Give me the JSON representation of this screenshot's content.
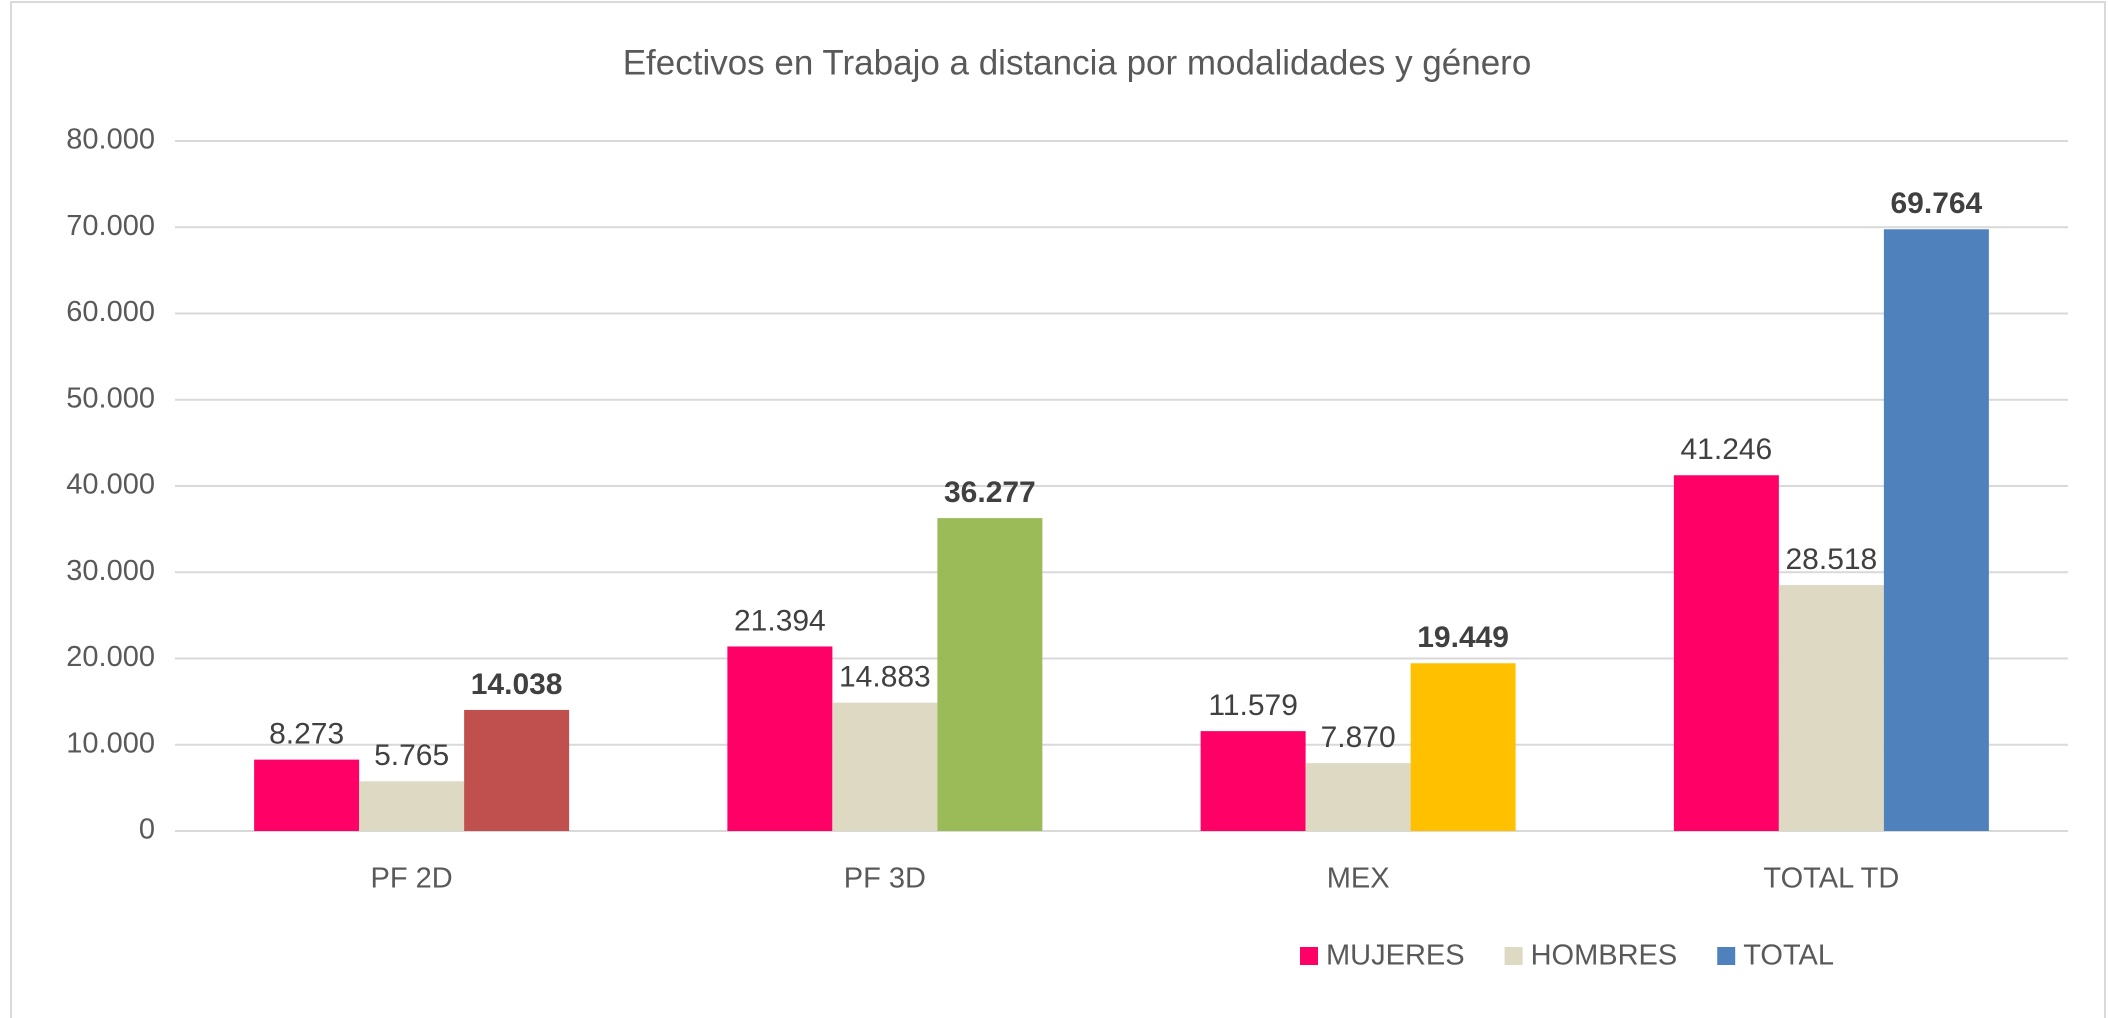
{
  "chart_data": {
    "type": "bar",
    "title": "Efectivos en Trabajo a distancia por modalidades y género",
    "categories": [
      "PF 2D",
      "PF 3D",
      "MEX",
      "TOTAL TD"
    ],
    "series": [
      {
        "name": "MUJERES",
        "color": "#ff0066",
        "values": [
          8273,
          21394,
          11579,
          41246
        ],
        "value_labels": [
          "8.273",
          "21.394",
          "11.579",
          "41.246"
        ]
      },
      {
        "name": "HOMBRES",
        "color": "#ddd9c3",
        "values": [
          5765,
          14883,
          7870,
          28518
        ],
        "value_labels": [
          "5.765",
          "14.883",
          "7.870",
          "28.518"
        ]
      },
      {
        "name": "TOTAL",
        "color": "#4f81bd",
        "colors": [
          "#c0504d",
          "#9bbb59",
          "#ffc000",
          "#4f81bd"
        ],
        "values": [
          14038,
          36277,
          19449,
          69764
        ],
        "value_labels": [
          "14.038",
          "36.277",
          "19.449",
          "69.764"
        ]
      }
    ],
    "ylim": [
      0,
      80000
    ],
    "yticks": [
      0,
      {
        "value": 10000,
        "label": "10.000"
      },
      {
        "value": 20000,
        "label": "20.000"
      },
      {
        "value": 30000,
        "label": "30.000"
      },
      {
        "value": 40000,
        "label": "40.000"
      },
      {
        "value": 50000,
        "label": "50.000"
      },
      {
        "value": 60000,
        "label": "60.000"
      },
      {
        "value": 70000,
        "label": "70.000"
      },
      {
        "value": 80000,
        "label": "80.000"
      }
    ],
    "grid": true,
    "legend": "bottom-right"
  }
}
